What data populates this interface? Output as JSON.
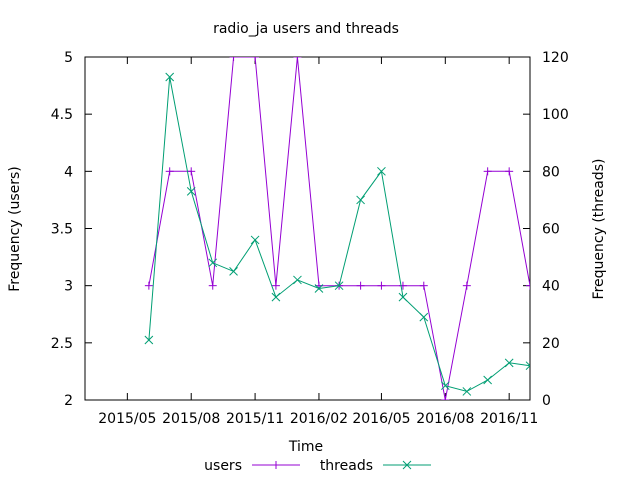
{
  "chart_data": {
    "type": "line",
    "title": "radio_ja users and threads",
    "xlabel": "Time",
    "ylabel_left": "Frequency (users)",
    "ylabel_right": "Frequency (threads)",
    "ylim_left": [
      2,
      5
    ],
    "ylim_right": [
      0,
      120
    ],
    "xlim": [
      "2015-03-01",
      "2016-12-01"
    ],
    "y_left_ticks": [
      "2",
      "2.5",
      "3",
      "3.5",
      "4",
      "4.5",
      "5"
    ],
    "y_right_ticks": [
      "0",
      "20",
      "40",
      "60",
      "80",
      "100",
      "120"
    ],
    "x_ticks": [
      {
        "date": "2015-05-01",
        "label": "2015/05"
      },
      {
        "date": "2015-08-01",
        "label": "2015/08"
      },
      {
        "date": "2015-11-01",
        "label": "2015/11"
      },
      {
        "date": "2016-02-01",
        "label": "2016/02"
      },
      {
        "date": "2016-05-01",
        "label": "2016/05"
      },
      {
        "date": "2016-08-01",
        "label": "2016/08"
      },
      {
        "date": "2016-11-01",
        "label": "2016/11"
      }
    ],
    "grid": false,
    "legend_position": "bottom",
    "series": [
      {
        "name": "users",
        "axis": "left",
        "color": "#9400d3",
        "marker": "plus",
        "x": [
          "2015-06-01",
          "2015-07-01",
          "2015-08-01",
          "2015-09-01",
          "2015-10-01",
          "2015-11-01",
          "2015-12-01",
          "2016-01-01",
          "2016-02-01",
          "2016-03-01",
          "2016-04-01",
          "2016-05-01",
          "2016-06-01",
          "2016-07-01",
          "2016-08-01",
          "2016-09-01",
          "2016-10-01",
          "2016-11-01",
          "2016-12-01"
        ],
        "values": [
          3,
          4,
          4,
          3,
          5,
          5,
          3,
          5,
          3,
          3,
          3,
          3,
          3,
          3,
          2,
          3,
          4,
          4,
          3
        ]
      },
      {
        "name": "threads",
        "axis": "right",
        "color": "#009e73",
        "marker": "cross",
        "x": [
          "2015-06-01",
          "2015-07-01",
          "2015-08-01",
          "2015-09-01",
          "2015-10-01",
          "2015-11-01",
          "2015-12-01",
          "2016-01-01",
          "2016-02-01",
          "2016-03-01",
          "2016-04-01",
          "2016-05-01",
          "2016-06-01",
          "2016-07-01",
          "2016-08-01",
          "2016-09-01",
          "2016-10-01",
          "2016-11-01",
          "2016-12-01"
        ],
        "values": [
          21,
          113,
          73,
          48,
          45,
          56,
          36,
          42,
          39,
          40,
          70,
          80,
          36,
          29,
          5,
          3,
          7,
          13,
          12
        ]
      }
    ]
  }
}
